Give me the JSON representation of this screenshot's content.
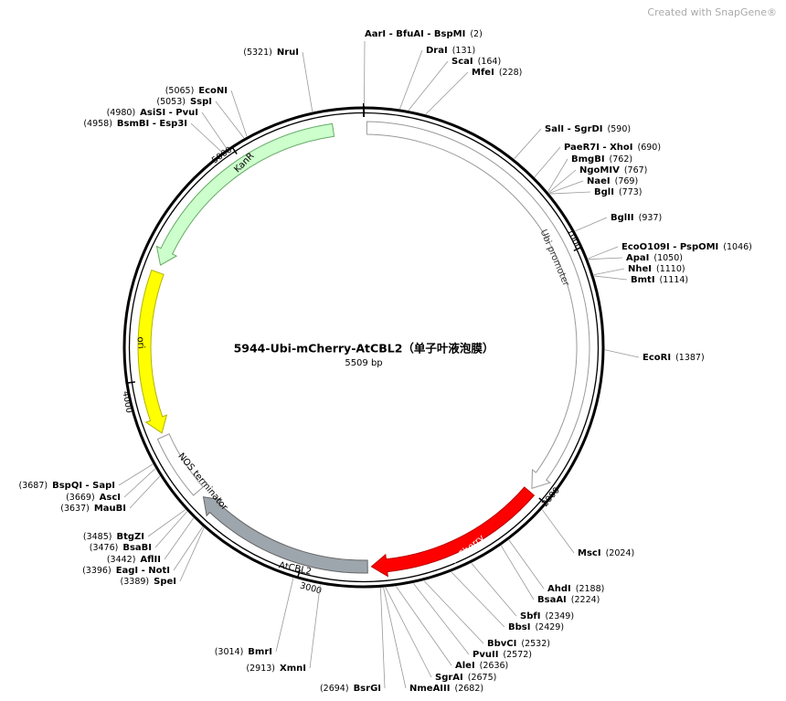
{
  "watermark": "Created with SnapGene®",
  "title": "5944-Ubi-mCherry-AtCBL2（单子叶液泡膜）",
  "subtitle": "5509 bp",
  "ticks": [
    1000,
    2000,
    3000,
    4000,
    5000
  ],
  "features": [
    {
      "name": "Ubi promoter"
    },
    {
      "name": "mCherry"
    },
    {
      "name": "AtCBL2"
    },
    {
      "name": "NOS terminator"
    },
    {
      "name": "ori"
    },
    {
      "name": "KanR"
    }
  ],
  "sites": [
    {
      "name": "AarI - BfuAI - BspMI",
      "site": "(2)"
    },
    {
      "name": "DraI",
      "site": "(131)"
    },
    {
      "name": "ScaI",
      "site": "(164)"
    },
    {
      "name": "MfeI",
      "site": "(228)"
    },
    {
      "name": "SalI - SgrDI",
      "site": "(590)"
    },
    {
      "name": "PaeR7I - XhoI",
      "site": "(690)"
    },
    {
      "name": "BmgBI",
      "site": "(762)"
    },
    {
      "name": "NgoMIV",
      "site": "(767)"
    },
    {
      "name": "NaeI",
      "site": "(769)"
    },
    {
      "name": "BglI",
      "site": "(773)"
    },
    {
      "name": "BglII",
      "site": "(937)"
    },
    {
      "name": "EcoO109I - PspOMI",
      "site": "(1046)"
    },
    {
      "name": "ApaI",
      "site": "(1050)"
    },
    {
      "name": "NheI",
      "site": "(1110)"
    },
    {
      "name": "BmtI",
      "site": "(1114)"
    },
    {
      "name": "EcoRI",
      "site": "(1387)"
    },
    {
      "name": "MscI",
      "site": "(2024)"
    },
    {
      "name": "AhdI",
      "site": "(2188)"
    },
    {
      "name": "BsaAI",
      "site": "(2224)"
    },
    {
      "name": "SbfI",
      "site": "(2349)"
    },
    {
      "name": "BbsI",
      "site": "(2429)"
    },
    {
      "name": "BbvCI",
      "site": "(2532)"
    },
    {
      "name": "PvuII",
      "site": "(2572)"
    },
    {
      "name": "AleI",
      "site": "(2636)"
    },
    {
      "name": "SgrAI",
      "site": "(2675)"
    },
    {
      "name": "NmeAIII",
      "site": "(2682)"
    },
    {
      "name": "NruI",
      "site": "(5321)"
    },
    {
      "name": "EcoNI",
      "site": "(5065)"
    },
    {
      "name": "SspI",
      "site": "(5053)"
    },
    {
      "name": "AsiSI - PvuI",
      "site": "(4980)"
    },
    {
      "name": "BsmBI - Esp3I",
      "site": "(4958)"
    },
    {
      "name": "BspQI - SapI",
      "site": "(3687)"
    },
    {
      "name": "AscI",
      "site": "(3669)"
    },
    {
      "name": "MauBI",
      "site": "(3637)"
    },
    {
      "name": "BtgZI",
      "site": "(3485)"
    },
    {
      "name": "BsaBI",
      "site": "(3476)"
    },
    {
      "name": "AflII",
      "site": "(3442)"
    },
    {
      "name": "EagI - NotI",
      "site": "(3396)"
    },
    {
      "name": "SpeI",
      "site": "(3389)"
    },
    {
      "name": "BmrI",
      "site": "(3014)"
    },
    {
      "name": "XmnI",
      "site": "(2913)"
    },
    {
      "name": "BsrGI",
      "site": "(2694)"
    }
  ]
}
